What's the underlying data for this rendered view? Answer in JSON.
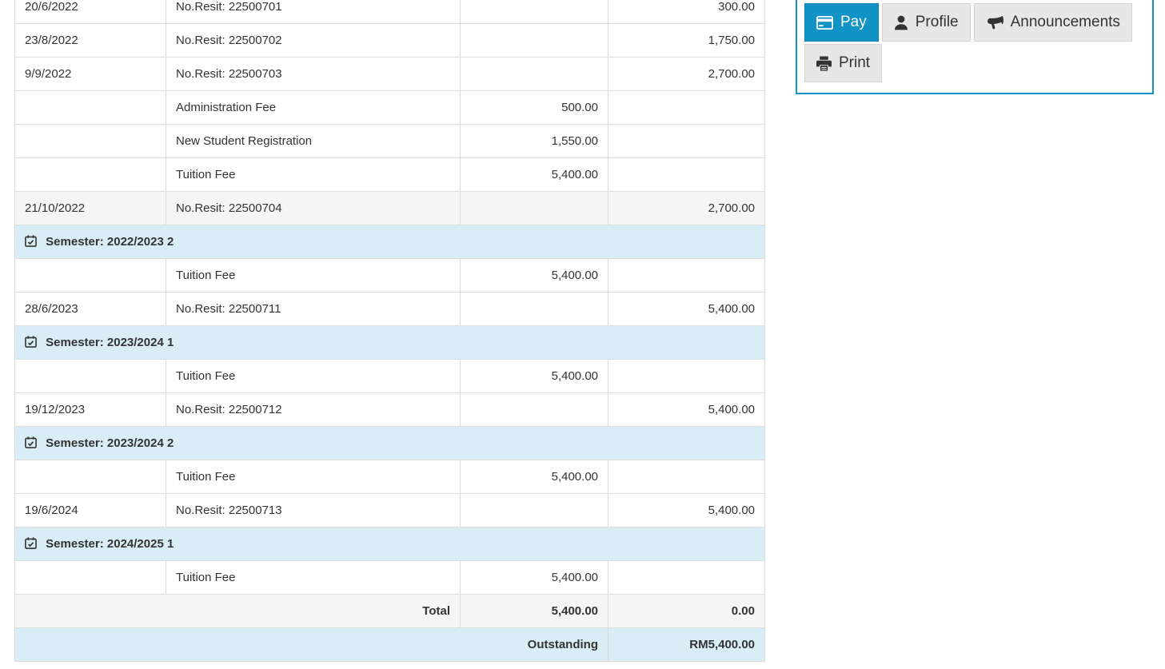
{
  "colors": {
    "accent": "#1293c6",
    "accent_dark": "#0e82b2",
    "header_row_bg": "#d9edf7",
    "shaded_row_bg": "#f5f5f5",
    "cell_border": "#dddddd",
    "text": "#333333",
    "button_bg": "#e7e7e7",
    "button_border": "#d4d4d4"
  },
  "actions": {
    "pay": "Pay",
    "profile": "Profile",
    "announcements": "Announcements",
    "print": "Print",
    "icons": {
      "pay": "credit-card-icon",
      "profile": "user-icon",
      "announcements": "bullhorn-icon",
      "print": "printer-icon"
    }
  },
  "table": {
    "semester_icon": "calendar-check-icon",
    "rows": [
      {
        "type": "entry",
        "date": "20/6/2022",
        "desc": "No.Resit: 22500701",
        "charge": "",
        "payment": "300.00",
        "shaded": false
      },
      {
        "type": "entry",
        "date": "23/8/2022",
        "desc": "No.Resit: 22500702",
        "charge": "",
        "payment": "1,750.00",
        "shaded": false
      },
      {
        "type": "entry",
        "date": "9/9/2022",
        "desc": "No.Resit: 22500703",
        "charge": "",
        "payment": "2,700.00",
        "shaded": false
      },
      {
        "type": "entry",
        "date": "",
        "desc": "Administration Fee",
        "charge": "500.00",
        "payment": "",
        "shaded": false
      },
      {
        "type": "entry",
        "date": "",
        "desc": "New Student Registration",
        "charge": "1,550.00",
        "payment": "",
        "shaded": false
      },
      {
        "type": "entry",
        "date": "",
        "desc": "Tuition Fee",
        "charge": "5,400.00",
        "payment": "",
        "shaded": false
      },
      {
        "type": "entry",
        "date": "21/10/2022",
        "desc": "No.Resit: 22500704",
        "charge": "",
        "payment": "2,700.00",
        "shaded": true
      },
      {
        "type": "semester",
        "label": "Semester: 2022/2023 2"
      },
      {
        "type": "entry",
        "date": "",
        "desc": "Tuition Fee",
        "charge": "5,400.00",
        "payment": "",
        "shaded": false
      },
      {
        "type": "entry",
        "date": "28/6/2023",
        "desc": "No.Resit: 22500711",
        "charge": "",
        "payment": "5,400.00",
        "shaded": false
      },
      {
        "type": "semester",
        "label": "Semester: 2023/2024 1"
      },
      {
        "type": "entry",
        "date": "",
        "desc": "Tuition Fee",
        "charge": "5,400.00",
        "payment": "",
        "shaded": false
      },
      {
        "type": "entry",
        "date": "19/12/2023",
        "desc": "No.Resit: 22500712",
        "charge": "",
        "payment": "5,400.00",
        "shaded": false
      },
      {
        "type": "semester",
        "label": "Semester: 2023/2024 2"
      },
      {
        "type": "entry",
        "date": "",
        "desc": "Tuition Fee",
        "charge": "5,400.00",
        "payment": "",
        "shaded": false
      },
      {
        "type": "entry",
        "date": "19/6/2024",
        "desc": "No.Resit: 22500713",
        "charge": "",
        "payment": "5,400.00",
        "shaded": false
      },
      {
        "type": "semester",
        "label": "Semester: 2024/2025 1"
      },
      {
        "type": "entry",
        "date": "",
        "desc": "Tuition Fee",
        "charge": "5,400.00",
        "payment": "",
        "shaded": false
      },
      {
        "type": "total",
        "label": "Total",
        "charge": "5,400.00",
        "payment": "0.00"
      },
      {
        "type": "outstanding",
        "label": "Outstanding",
        "amount": "RM5,400.00"
      }
    ]
  }
}
